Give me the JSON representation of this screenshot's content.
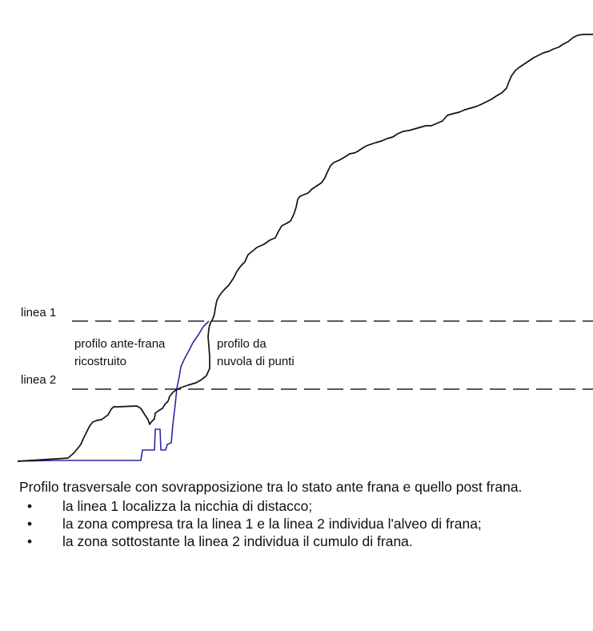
{
  "labels": {
    "line1": "linea 1",
    "line2": "linea 2",
    "ante_line1": "profilo ante-frana",
    "ante_line2": "ricostruito",
    "cloud_line1": "profilo da",
    "cloud_line2": "nuvola di punti"
  },
  "colors": {
    "post_profile": "#111111",
    "ante_profile": "#2a2aa0",
    "dashed_line": "#222222"
  },
  "caption": {
    "intro": "Profilo trasversale con sovrapposizione tra lo stato ante frana e quello post frana.",
    "bullets": [
      "la linea 1 localizza la nicchia di distacco;",
      "la zona compresa tra la linea 1 e la linea 2 individua l'alveo di frana;",
      "la zona sottostante la linea 2 individua il cumulo di frana."
    ]
  }
}
